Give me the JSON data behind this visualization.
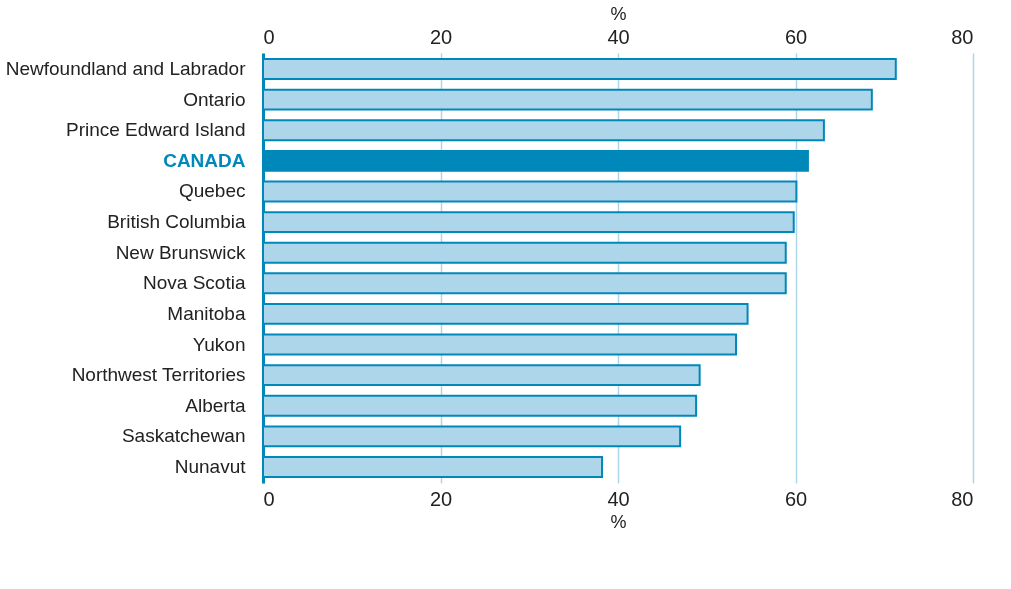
{
  "chart_data": {
    "type": "bar",
    "orientation": "horizontal",
    "categories": [
      "Newfoundland and Labrador",
      "Ontario",
      "Prince Edward Island",
      "CANADA",
      "Quebec",
      "British Columbia",
      "New Brunswick",
      "Nova Scotia",
      "Manitoba",
      "Yukon",
      "Northwest Territories",
      "Alberta",
      "Saskatchewan",
      "Nunavut"
    ],
    "values": [
      71.3,
      68.6,
      63.2,
      61.4,
      60.1,
      59.8,
      58.9,
      58.9,
      54.6,
      53.3,
      49.2,
      48.8,
      47.0,
      38.2
    ],
    "colors": [
      "#aed6ea",
      "#aed6ea",
      "#aed6ea",
      "#0088bb",
      "#aed6ea",
      "#aed6ea",
      "#aed6ea",
      "#aed6ea",
      "#aed6ea",
      "#aed6ea",
      "#aed6ea",
      "#aed6ea",
      "#aed6ea",
      "#aed6ea"
    ],
    "xlabel": "%",
    "xlim": [
      0,
      80
    ],
    "xticks": [
      0,
      20,
      40,
      60,
      80
    ],
    "x2label": "%",
    "x2lim": [
      0,
      80
    ],
    "x2ticks": [
      0,
      20,
      40,
      60,
      80
    ],
    "grid": "x"
  }
}
